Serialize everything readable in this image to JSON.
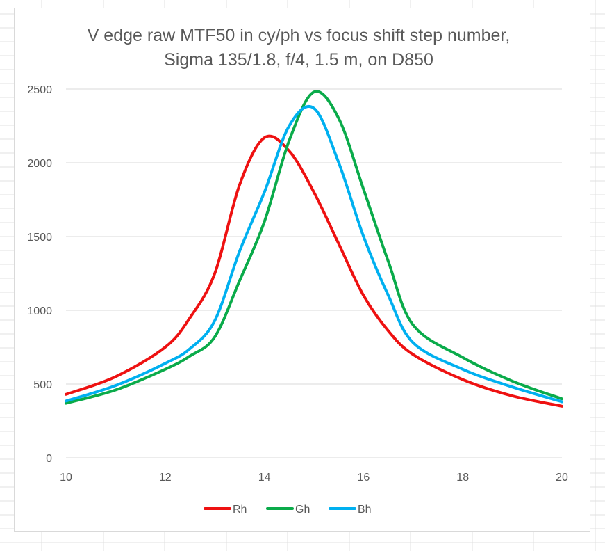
{
  "chart_data": {
    "type": "line",
    "title": "V edge raw MTF50 in cy/ph vs focus shift step number,",
    "subtitle": "Sigma 135/1.8, f/4, 1.5 m, on D850",
    "xlabel": "",
    "ylabel": "",
    "xlim": [
      10,
      20
    ],
    "ylim": [
      0,
      2500
    ],
    "x_ticks": [
      "10",
      "12",
      "14",
      "16",
      "18",
      "20"
    ],
    "y_ticks": [
      "0",
      "500",
      "1000",
      "1500",
      "2000",
      "2500"
    ],
    "grid": true,
    "legend_position": "bottom",
    "x": [
      10,
      11,
      12,
      12.5,
      13,
      13.5,
      14,
      14.5,
      15,
      15.5,
      16,
      16.5,
      17,
      18,
      19,
      20
    ],
    "series": [
      {
        "name": "Rh",
        "color": "#ee1111",
        "values": [
          430,
          550,
          750,
          950,
          1250,
          1850,
          2170,
          2080,
          1800,
          1450,
          1100,
          860,
          700,
          530,
          420,
          350
        ]
      },
      {
        "name": "Gh",
        "color": "#0aab4a",
        "values": [
          370,
          460,
          600,
          690,
          820,
          1200,
          1600,
          2150,
          2480,
          2300,
          1820,
          1330,
          900,
          680,
          520,
          400
        ]
      },
      {
        "name": "Bh",
        "color": "#00b0f0",
        "values": [
          385,
          490,
          640,
          740,
          930,
          1400,
          1800,
          2250,
          2370,
          2000,
          1500,
          1100,
          780,
          600,
          480,
          380
        ]
      }
    ]
  }
}
